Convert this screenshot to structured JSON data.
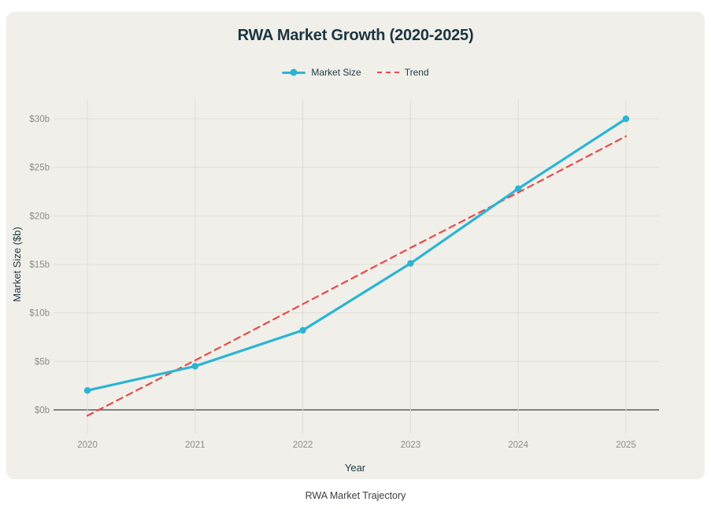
{
  "chart_data": {
    "type": "line",
    "title": "RWA Market Growth (2020-2025)",
    "xlabel": "Year",
    "ylabel": "Market Size ($b)",
    "caption": "RWA Market Trajectory",
    "categories": [
      "2020",
      "2021",
      "2022",
      "2023",
      "2024",
      "2025"
    ],
    "series": [
      {
        "name": "Market Size",
        "color": "#2BB4D4",
        "line_style": "solid",
        "markers": true,
        "values": [
          2.0,
          4.5,
          8.2,
          15.1,
          22.8,
          30.0
        ]
      },
      {
        "name": "Trend",
        "color": "#E8494C",
        "line_style": "dashed",
        "markers": false,
        "values": [
          -0.6,
          5.1,
          10.9,
          16.7,
          22.4,
          28.2
        ]
      }
    ],
    "y_ticks": [
      {
        "value": 0,
        "label": "$0b"
      },
      {
        "value": 5,
        "label": "$5b"
      },
      {
        "value": 10,
        "label": "$10b"
      },
      {
        "value": 15,
        "label": "$15b"
      },
      {
        "value": 20,
        "label": "$20b"
      },
      {
        "value": 25,
        "label": "$25b"
      },
      {
        "value": 30,
        "label": "$30b"
      }
    ],
    "ylim": [
      0,
      30
    ],
    "grid": true,
    "legend_position": "top"
  },
  "colors": {
    "page_bg": "#FFFFFF",
    "card_bg": "#F0EFE9",
    "grid": "#DEDDD5",
    "axis_line": "#5B5B5F",
    "tick_text": "#8C8C8C",
    "axis_title_text": "#1E3A45",
    "title_text": "#1B3440",
    "legend_text": "#1E3A45",
    "caption_text": "#3C3C43"
  }
}
